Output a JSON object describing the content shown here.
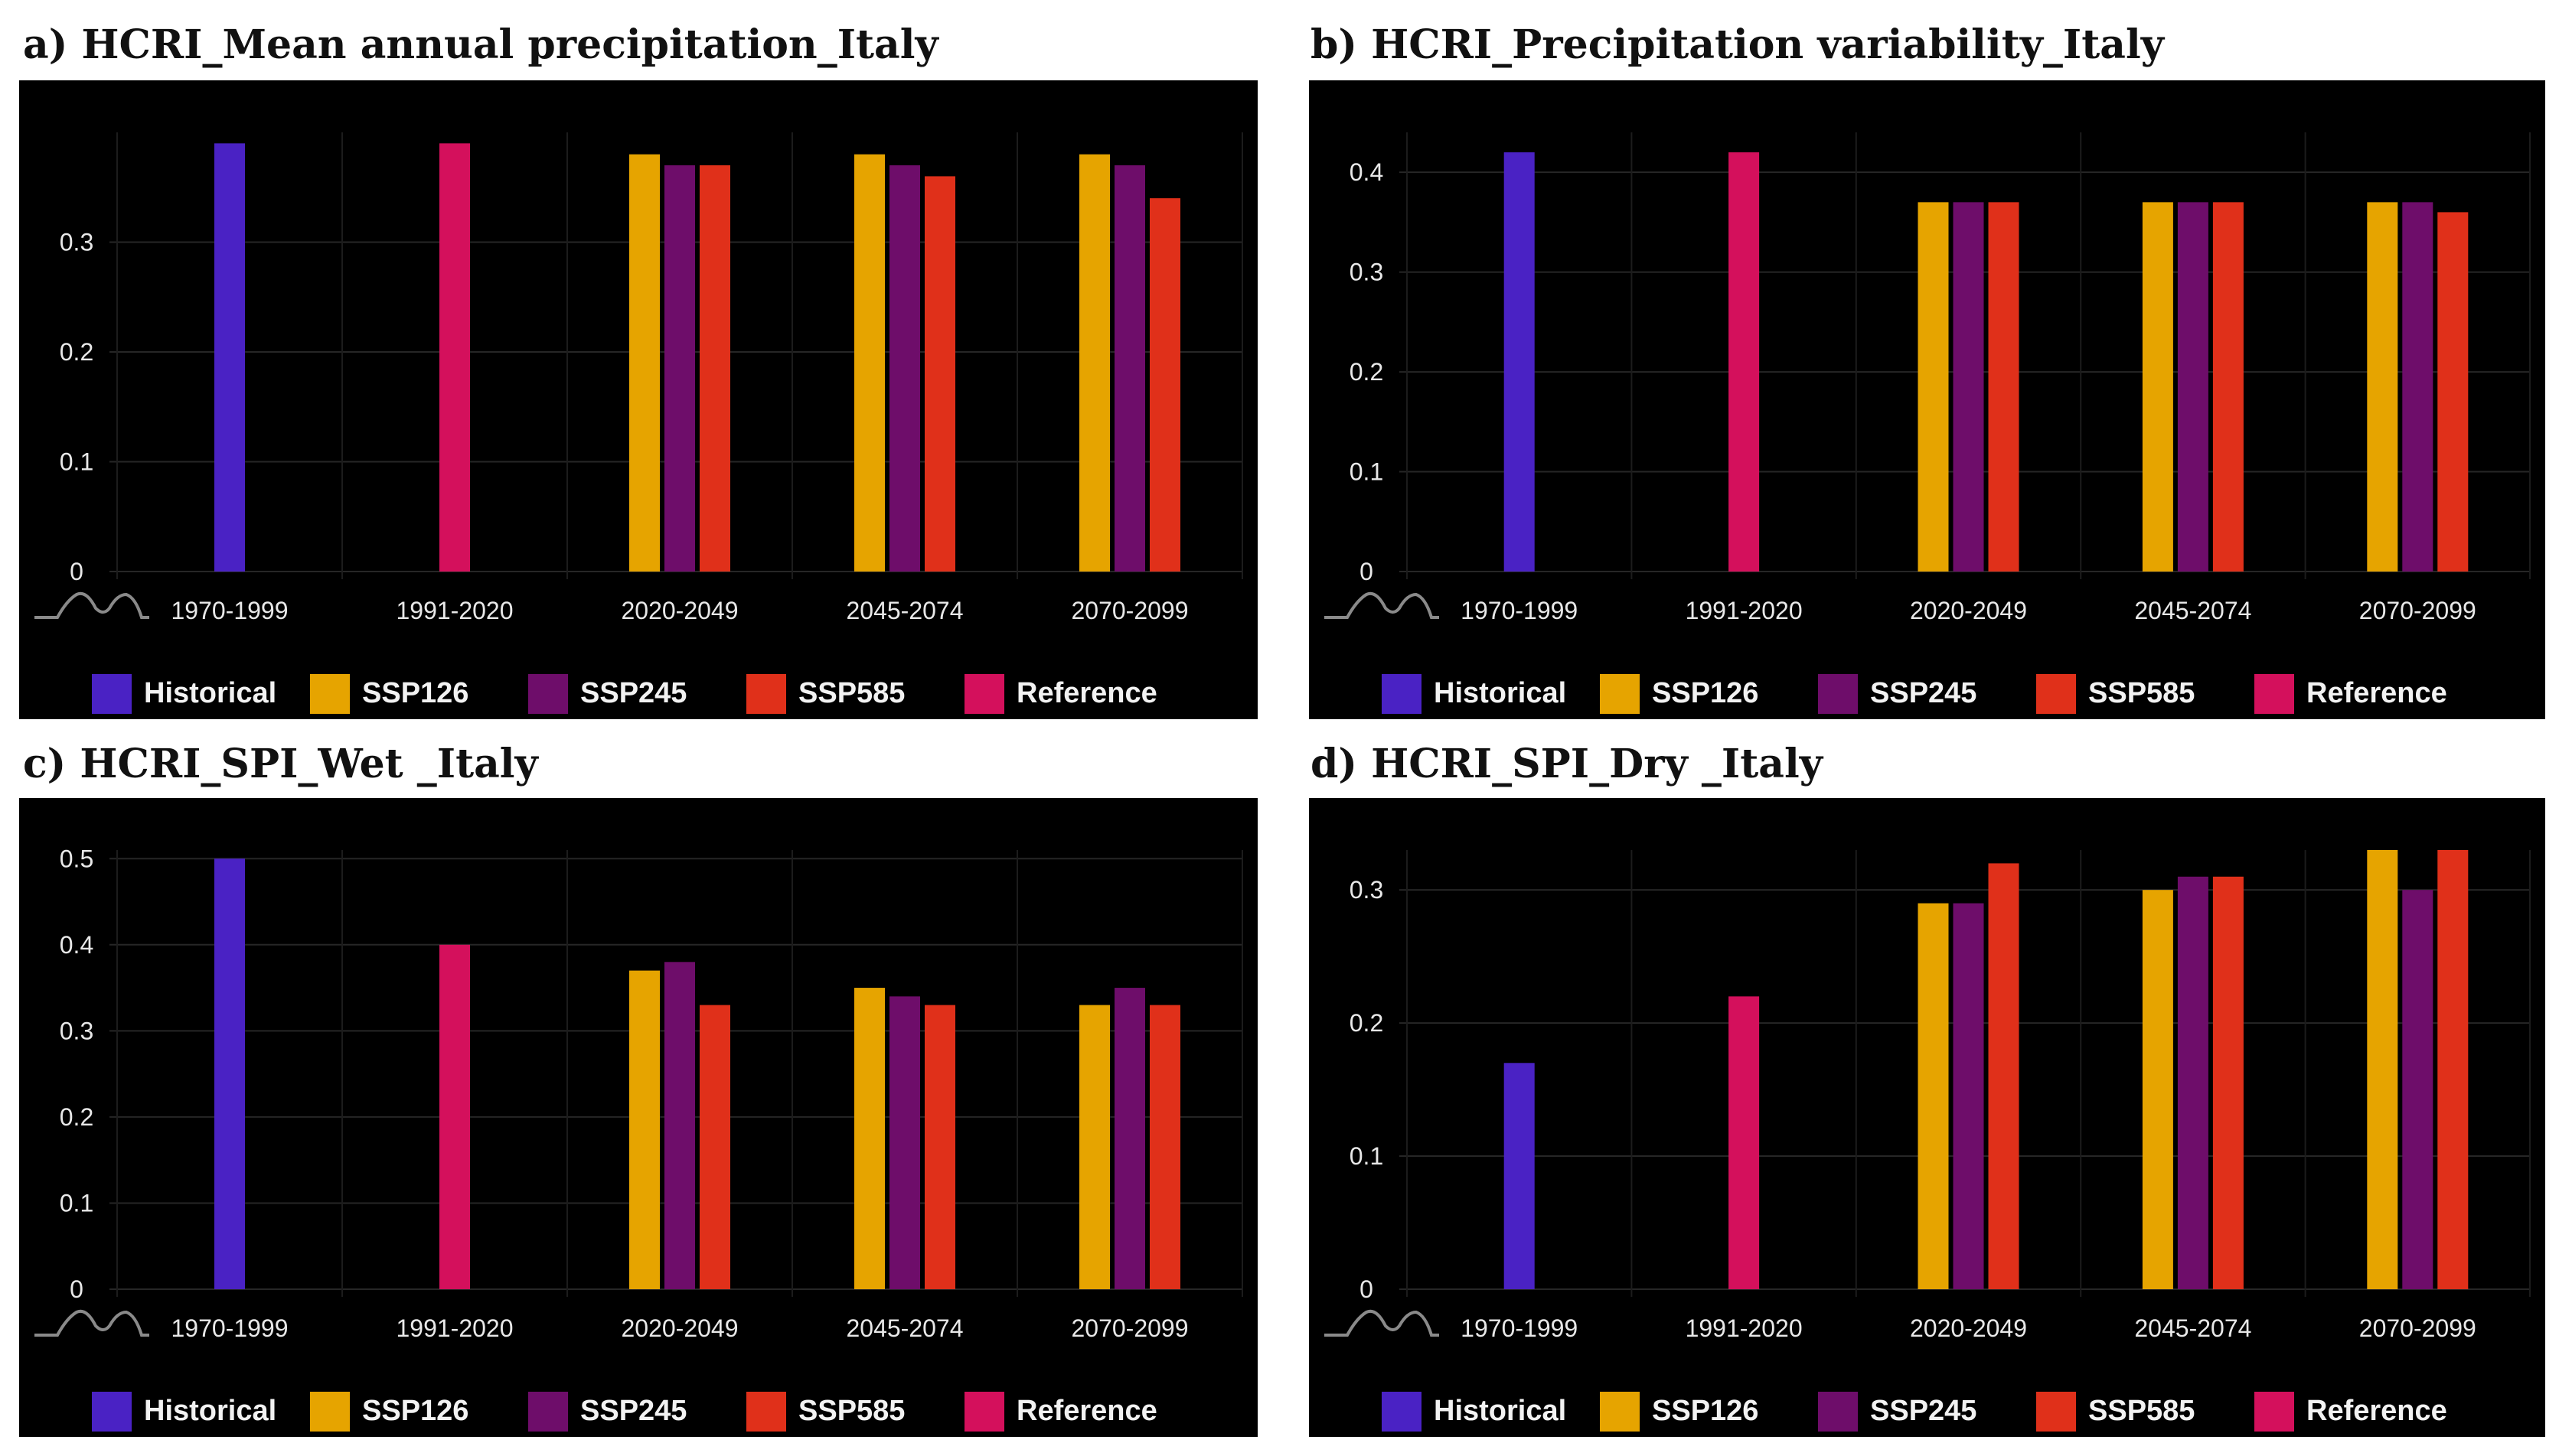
{
  "legend": [
    {
      "name": "Historical",
      "color": "#4a22c4"
    },
    {
      "name": "SSP126",
      "color": "#e6a400"
    },
    {
      "name": "SSP245",
      "color": "#6e0d6a"
    },
    {
      "name": "SSP585",
      "color": "#e0301a"
    },
    {
      "name": "Reference",
      "color": "#d4105c"
    }
  ],
  "chart_data": [
    {
      "type": "bar",
      "title": "a) HCRI_Mean annual precipitation_Italy",
      "categories": [
        "1970-1999",
        "1991-2020",
        "2020-2049",
        "2045-2074",
        "2070-2099"
      ],
      "ylim": [
        0,
        0.4
      ],
      "yticks": [
        "0",
        "0.1",
        "0.2",
        "0.3"
      ],
      "series": [
        {
          "name": "Historical",
          "values": [
            0.39,
            null,
            null,
            null,
            null
          ]
        },
        {
          "name": "Reference",
          "values": [
            null,
            0.39,
            null,
            null,
            null
          ]
        },
        {
          "name": "SSP126",
          "values": [
            null,
            null,
            0.38,
            0.38,
            0.38
          ]
        },
        {
          "name": "SSP245",
          "values": [
            null,
            null,
            0.37,
            0.37,
            0.37
          ]
        },
        {
          "name": "SSP585",
          "values": [
            null,
            null,
            0.37,
            0.36,
            0.34
          ]
        }
      ]
    },
    {
      "type": "bar",
      "title": "b) HCRI_Precipitation variability_Italy",
      "categories": [
        "1970-1999",
        "1991-2020",
        "2020-2049",
        "2045-2074",
        "2070-2099"
      ],
      "ylim": [
        0,
        0.44
      ],
      "yticks": [
        "0",
        "0.1",
        "0.2",
        "0.3",
        "0.4"
      ],
      "series": [
        {
          "name": "Historical",
          "values": [
            0.42,
            null,
            null,
            null,
            null
          ]
        },
        {
          "name": "Reference",
          "values": [
            null,
            0.42,
            null,
            null,
            null
          ]
        },
        {
          "name": "SSP126",
          "values": [
            null,
            null,
            0.37,
            0.37,
            0.37
          ]
        },
        {
          "name": "SSP245",
          "values": [
            null,
            null,
            0.37,
            0.37,
            0.37
          ]
        },
        {
          "name": "SSP585",
          "values": [
            null,
            null,
            0.37,
            0.37,
            0.36
          ]
        }
      ]
    },
    {
      "type": "bar",
      "title": "c) HCRI_SPI_Wet _Italy",
      "categories": [
        "1970-1999",
        "1991-2020",
        "2020-2049",
        "2045-2074",
        "2070-2099"
      ],
      "ylim": [
        0,
        0.51
      ],
      "yticks": [
        "0",
        "0.1",
        "0.2",
        "0.3",
        "0.4",
        "0.5"
      ],
      "series": [
        {
          "name": "Historical",
          "values": [
            0.5,
            null,
            null,
            null,
            null
          ]
        },
        {
          "name": "Reference",
          "values": [
            null,
            0.4,
            null,
            null,
            null
          ]
        },
        {
          "name": "SSP126",
          "values": [
            null,
            null,
            0.37,
            0.35,
            0.33
          ]
        },
        {
          "name": "SSP245",
          "values": [
            null,
            null,
            0.38,
            0.34,
            0.35
          ]
        },
        {
          "name": "SSP585",
          "values": [
            null,
            null,
            0.33,
            0.33,
            0.33
          ]
        }
      ]
    },
    {
      "type": "bar",
      "title": "d) HCRI_SPI_Dry _Italy",
      "categories": [
        "1970-1999",
        "1991-2020",
        "2020-2049",
        "2045-2074",
        "2070-2099"
      ],
      "ylim": [
        0,
        0.33
      ],
      "yticks": [
        "0",
        "0.1",
        "0.2",
        "0.3"
      ],
      "series": [
        {
          "name": "Historical",
          "values": [
            0.17,
            null,
            null,
            null,
            null
          ]
        },
        {
          "name": "Reference",
          "values": [
            null,
            0.22,
            null,
            null,
            null
          ]
        },
        {
          "name": "SSP126",
          "values": [
            null,
            null,
            0.29,
            0.3,
            0.33
          ]
        },
        {
          "name": "SSP245",
          "values": [
            null,
            null,
            0.29,
            0.31,
            0.3
          ]
        },
        {
          "name": "SSP585",
          "values": [
            null,
            null,
            0.32,
            0.31,
            0.33
          ]
        }
      ]
    }
  ]
}
